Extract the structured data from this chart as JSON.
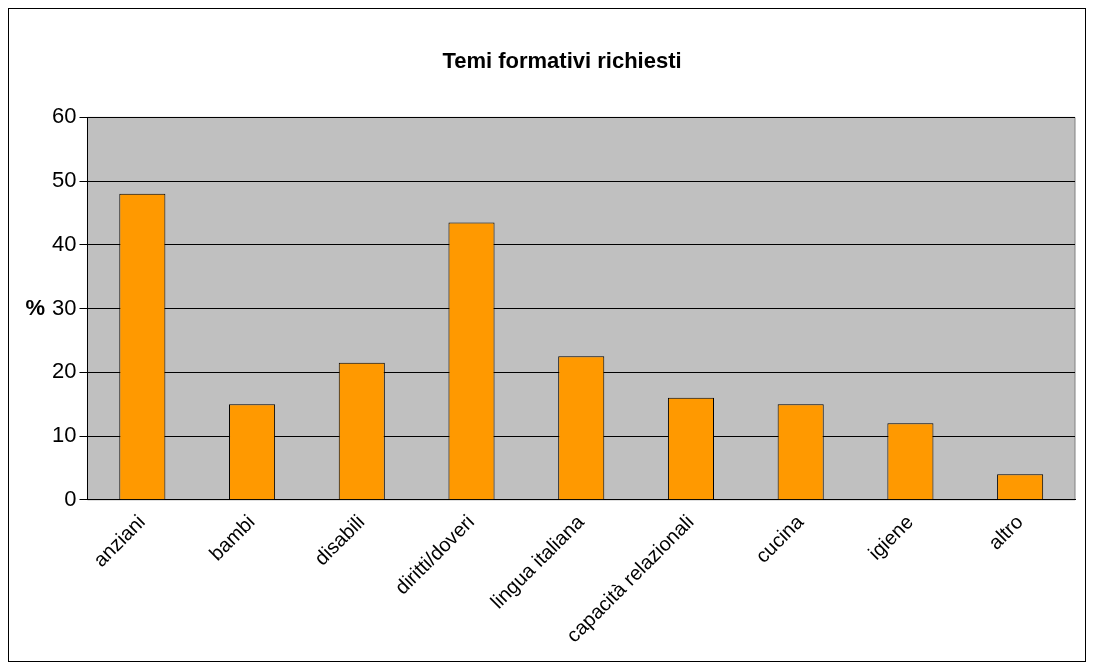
{
  "chart_data": {
    "type": "bar",
    "title": "Temi formativi richiesti",
    "ylabel": "%",
    "categories": [
      "anziani",
      "bambi",
      "disabili",
      "diritti/doveri",
      "lingua italiana",
      "capacità relazionali",
      "cucina",
      "igiene",
      "altro"
    ],
    "series": [
      {
        "color": "#ff9900",
        "values": [
          48,
          15,
          21.5,
          43.5,
          22.5,
          16,
          15,
          12,
          4
        ]
      }
    ],
    "ylim": [
      0,
      60
    ],
    "yticks": [
      0,
      10,
      20,
      30,
      40,
      50,
      60
    ],
    "grid": "y",
    "legend": false
  }
}
